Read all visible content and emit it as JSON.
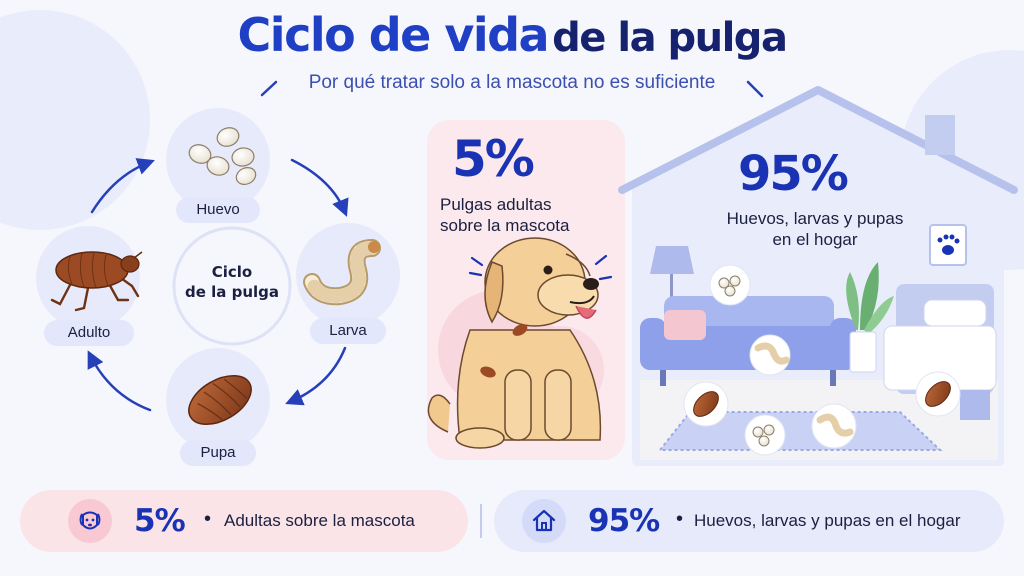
{
  "header": {
    "title_main": "Ciclo de vida",
    "title_rest": "de la pulga",
    "subtitle": "Por qué tratar solo a la mascota no es suficiente"
  },
  "cycle": {
    "center_line1": "Ciclo",
    "center_line2": "de la pulga",
    "stages": {
      "egg": "Huevo",
      "larva": "Larva",
      "pupa": "Pupa",
      "adult": "Adulto"
    }
  },
  "pet_panel": {
    "percent": "5%",
    "line1": "Pulgas adultas",
    "line2": "sobre la mascota"
  },
  "home_panel": {
    "percent": "95%",
    "line1": "Huevos, larvas y pupas",
    "line2": "en el hogar"
  },
  "summary": {
    "pet": {
      "percent": "5%",
      "bullet": "•",
      "text": "Adultas sobre la mascota"
    },
    "home": {
      "percent": "95%",
      "bullet": "•",
      "text": "Huevos, larvas y pupas en el hogar"
    }
  },
  "colors": {
    "accent": "#1f3fc4",
    "navy": "#17226e",
    "pet_panel_bg": "#fbe9ee",
    "home_panel_bg": "#e9edfb",
    "flea_brown": "#9b4a24"
  },
  "icons": [
    "egg-icon",
    "larva-icon",
    "pupa-icon",
    "adult-flea-icon",
    "dog-icon",
    "house-icon",
    "paw-icon"
  ]
}
